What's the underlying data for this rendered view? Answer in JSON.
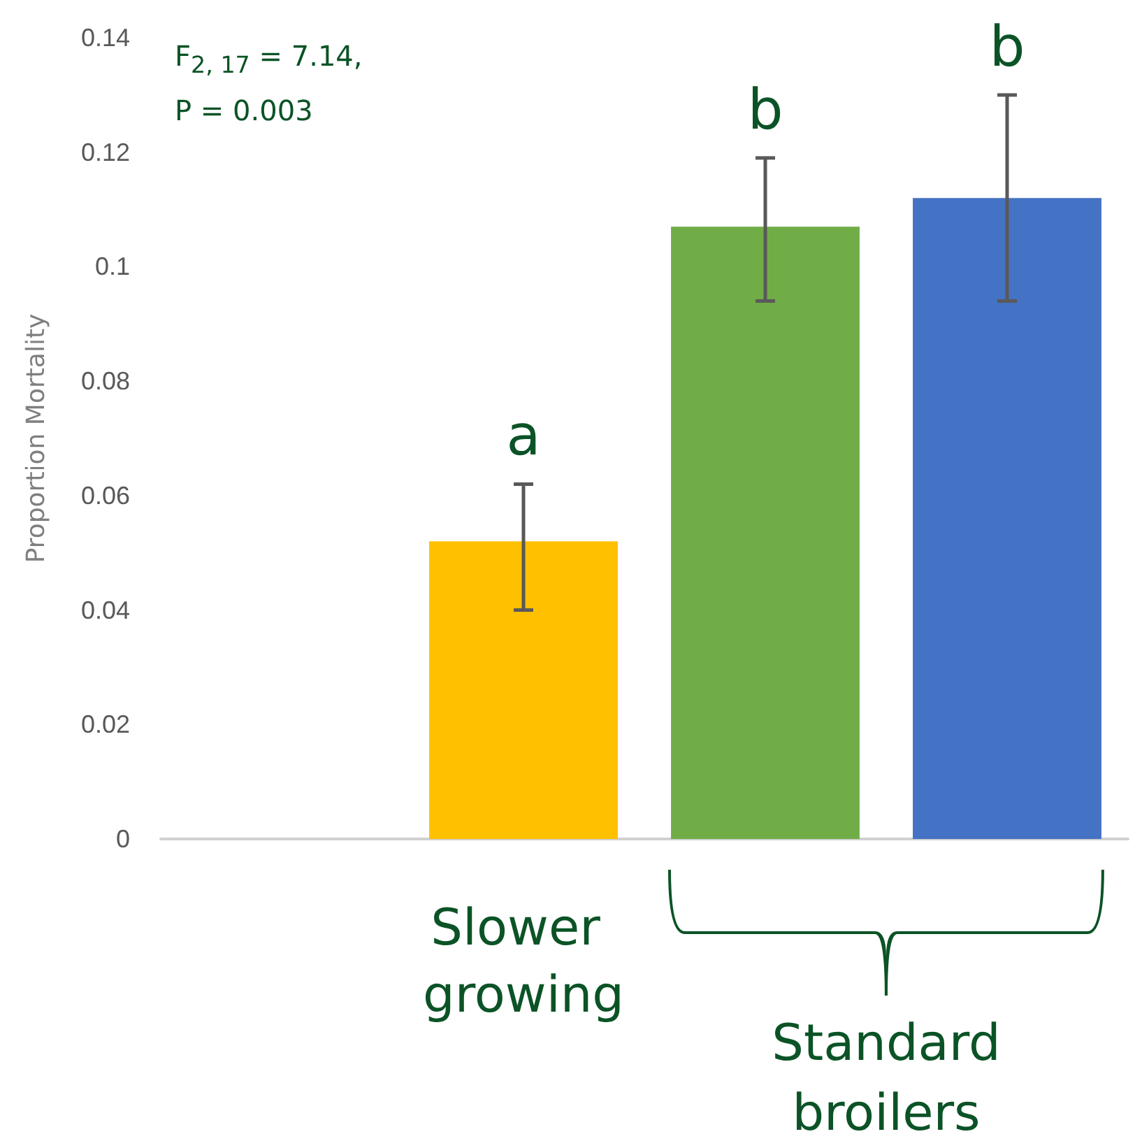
{
  "chart_data": {
    "type": "bar",
    "ylabel": "Proportion Mortality",
    "categories": [
      null,
      "Slower growing",
      null,
      null
    ],
    "values": [
      null,
      0.052,
      0.107,
      0.112
    ],
    "colors": [
      "#ffc000",
      "#ffc000",
      "#70ad47",
      "#4472c4"
    ],
    "errors": [
      null,
      [
        0.04,
        0.062
      ],
      [
        0.094,
        0.119
      ],
      [
        0.094,
        0.13
      ]
    ],
    "value_labels": [
      null,
      "a",
      "b",
      "b"
    ],
    "annotations": [
      "F$_{2, 17}$ = 7.14,\nP = 0.003",
      "Standard broilers"
    ],
    "ylim": [
      0,
      0.14
    ],
    "yticks": [
      0,
      0.02,
      0.04,
      0.06,
      0.08,
      0.1,
      0.12,
      0.14
    ],
    "grid": false
  }
}
